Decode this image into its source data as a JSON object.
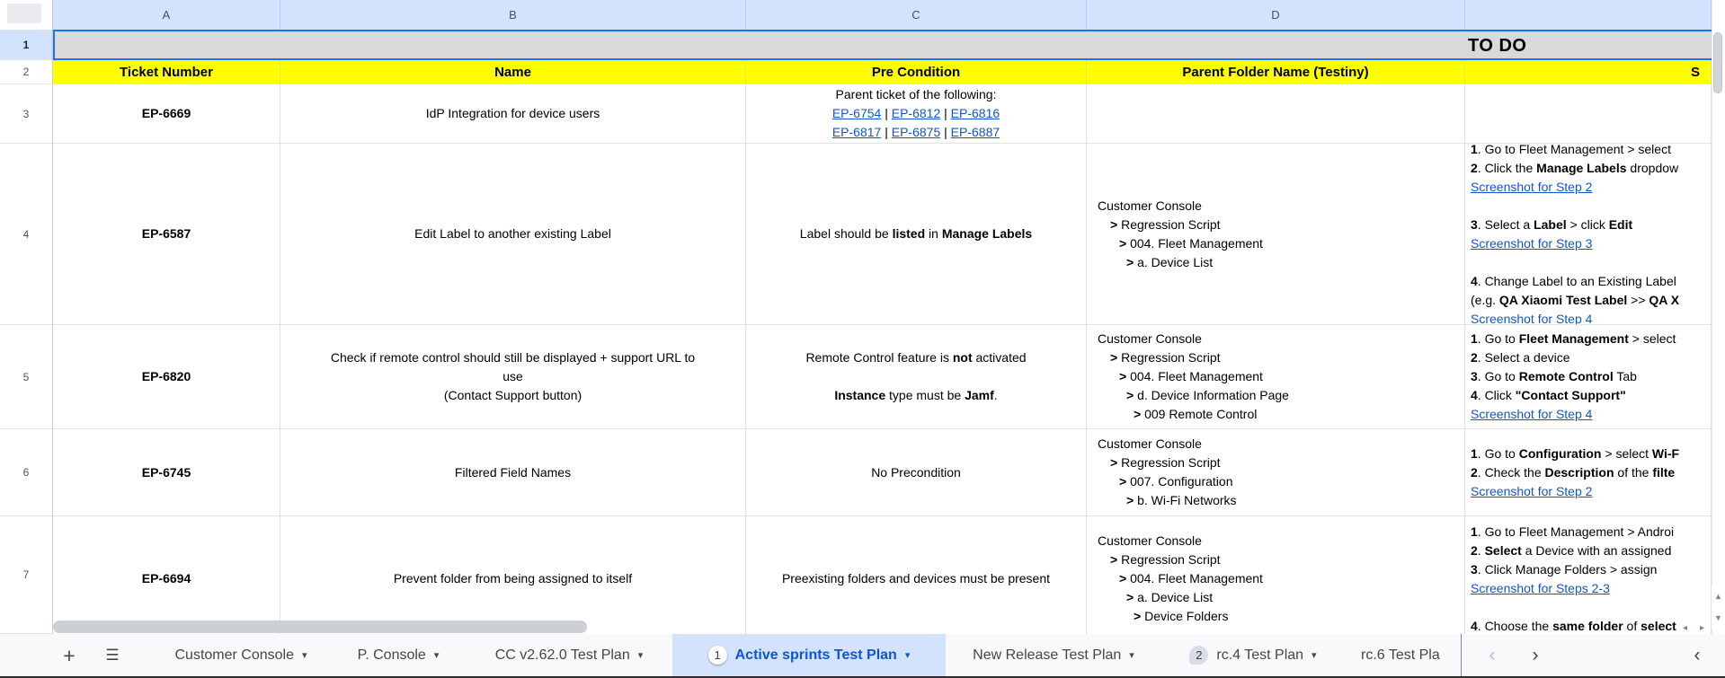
{
  "colors": {
    "header_highlight": "#d3e3fd",
    "banner_gray": "#d9d9d9",
    "header_yellow": "#ffff00",
    "selection_blue": "#1a73e8",
    "link_blue": "#1155cc",
    "active_tab_text": "#0b57d0",
    "active_tab_bg": "#d3e3fd"
  },
  "icons": {
    "scroll_up": "▲",
    "scroll_down": "▼",
    "scroll_left": "◂",
    "scroll_right": "▸",
    "tab_menu_arrow": "▾",
    "add_sheet": "+",
    "all_sheets": "☰"
  },
  "sheet": {
    "merged_banner": "TO DO",
    "column_letters": [
      "A",
      "B",
      "C",
      "D",
      ""
    ],
    "row_numbers": [
      "1",
      "2",
      "3",
      "4",
      "5",
      "6",
      "7"
    ],
    "headers": {
      "ticket": "Ticket Number",
      "name": "Name",
      "pre": "Pre Condition",
      "folder": "Parent Folder Name (Testiny)",
      "steps": "S"
    },
    "rows": [
      {
        "row": "3",
        "ticket": "EP-6669",
        "name": [
          {
            "s": [
              {
                "t": "IdP Integration for device users"
              }
            ]
          }
        ],
        "pre": [
          {
            "s": [
              {
                "t": "Parent ticket of the following:"
              }
            ]
          },
          {
            "s": [
              {
                "t": "EP-6754",
                "l": 1
              },
              {
                "t": " | "
              },
              {
                "t": "EP-6812",
                "l": 1
              },
              {
                "t": " | "
              },
              {
                "t": "EP-6816",
                "l": 1
              }
            ]
          },
          {
            "s": [
              {
                "t": "EP-6817",
                "l": 1
              },
              {
                "t": " | "
              },
              {
                "t": "EP-6875",
                "l": 1
              },
              {
                "t": " | "
              },
              {
                "t": "EP-6887",
                "l": 1
              }
            ]
          }
        ],
        "folder": [],
        "steps": []
      },
      {
        "row": "4",
        "ticket": "EP-6587",
        "name": [
          {
            "s": [
              {
                "t": "Edit Label to another existing Label"
              }
            ]
          }
        ],
        "pre": [
          {
            "s": [
              {
                "t": "Label should be "
              },
              {
                "t": "listed",
                "b": 1
              },
              {
                "t": " in "
              },
              {
                "t": "Manage Labels",
                "b": 1
              }
            ]
          }
        ],
        "folder": [
          {
            "ind": 0,
            "s": [
              {
                "t": "Customer Console"
              }
            ]
          },
          {
            "ind": 1,
            "s": [
              {
                "t": "> ",
                "b": 1
              },
              {
                "t": "Regression Script"
              }
            ]
          },
          {
            "ind": 2,
            "s": [
              {
                "t": "> ",
                "b": 1
              },
              {
                "t": "004. Fleet Management"
              }
            ]
          },
          {
            "ind": 3,
            "s": [
              {
                "t": "> ",
                "b": 1
              },
              {
                "t": "a. Device List"
              }
            ]
          }
        ],
        "steps": [
          {
            "s": [
              {
                "t": "1",
                "b": 1
              },
              {
                "t": ". Go to Fleet Management > select"
              }
            ]
          },
          {
            "s": [
              {
                "t": "2",
                "b": 1
              },
              {
                "t": ". Click the "
              },
              {
                "t": "Manage Labels",
                "b": 1
              },
              {
                "t": " dropdow"
              }
            ]
          },
          {
            "s": [
              {
                "t": "Screenshot for Step 2",
                "l": 1
              }
            ]
          },
          {
            "s": []
          },
          {
            "s": [
              {
                "t": "3",
                "b": 1
              },
              {
                "t": ". Select a "
              },
              {
                "t": "Label",
                "b": 1
              },
              {
                "t": " > click "
              },
              {
                "t": "Edit",
                "b": 1
              }
            ]
          },
          {
            "s": [
              {
                "t": "Screenshot for Step 3",
                "l": 1
              }
            ]
          },
          {
            "s": []
          },
          {
            "s": [
              {
                "t": "4",
                "b": 1
              },
              {
                "t": ". Change Label to an Existing Label"
              }
            ]
          },
          {
            "s": [
              {
                "t": "(e.g. "
              },
              {
                "t": "QA Xiaomi Test Label",
                "b": 1
              },
              {
                "t": " >> "
              },
              {
                "t": "QA X",
                "b": 1
              }
            ]
          },
          {
            "s": [
              {
                "t": "Screenshot for Step 4",
                "l": 1
              }
            ]
          }
        ]
      },
      {
        "row": "5",
        "ticket": "EP-6820",
        "name": [
          {
            "s": [
              {
                "t": "Check if remote control should still be displayed + support URL to"
              }
            ]
          },
          {
            "s": [
              {
                "t": "use"
              }
            ]
          },
          {
            "s": [
              {
                "t": "(Contact Support button)"
              }
            ]
          }
        ],
        "pre": [
          {
            "s": [
              {
                "t": "Remote Control feature is "
              },
              {
                "t": "not",
                "b": 1
              },
              {
                "t": " activated"
              }
            ]
          },
          {
            "s": []
          },
          {
            "s": [
              {
                "t": "Instance",
                "b": 1
              },
              {
                "t": " type must be "
              },
              {
                "t": "Jamf",
                "b": 1
              },
              {
                "t": "."
              }
            ]
          }
        ],
        "folder": [
          {
            "ind": 0,
            "s": [
              {
                "t": "Customer Console"
              }
            ]
          },
          {
            "ind": 1,
            "s": [
              {
                "t": "> ",
                "b": 1
              },
              {
                "t": "Regression Script"
              }
            ]
          },
          {
            "ind": 2,
            "s": [
              {
                "t": "> ",
                "b": 1
              },
              {
                "t": "004. Fleet Management"
              }
            ]
          },
          {
            "ind": 3,
            "s": [
              {
                "t": "> ",
                "b": 1
              },
              {
                "t": "d. Device Information Page"
              }
            ]
          },
          {
            "ind": 4,
            "s": [
              {
                "t": "> ",
                "b": 1
              },
              {
                "t": "009 Remote Control"
              }
            ]
          }
        ],
        "steps": [
          {
            "s": [
              {
                "t": "1",
                "b": 1
              },
              {
                "t": ". Go to "
              },
              {
                "t": "Fleet Management",
                "b": 1
              },
              {
                "t": " > select"
              }
            ]
          },
          {
            "s": [
              {
                "t": "2",
                "b": 1
              },
              {
                "t": ". Select a device"
              }
            ]
          },
          {
            "s": [
              {
                "t": "3",
                "b": 1
              },
              {
                "t": ". Go to "
              },
              {
                "t": "Remote Control",
                "b": 1
              },
              {
                "t": " Tab"
              }
            ]
          },
          {
            "s": [
              {
                "t": "4",
                "b": 1
              },
              {
                "t": ". Click "
              },
              {
                "t": "\"Contact Support\"",
                "b": 1
              }
            ]
          },
          {
            "s": [
              {
                "t": "Screenshot for Step 4",
                "l": 1
              }
            ]
          }
        ]
      },
      {
        "row": "6",
        "ticket": "EP-6745",
        "name": [
          {
            "s": [
              {
                "t": "Filtered Field Names"
              }
            ]
          }
        ],
        "pre": [
          {
            "s": [
              {
                "t": "No Precondition"
              }
            ]
          }
        ],
        "folder": [
          {
            "ind": 0,
            "s": [
              {
                "t": "Customer Console"
              }
            ]
          },
          {
            "ind": 1,
            "s": [
              {
                "t": "> ",
                "b": 1
              },
              {
                "t": "Regression Script"
              }
            ]
          },
          {
            "ind": 2,
            "s": [
              {
                "t": "> ",
                "b": 1
              },
              {
                "t": "007. Configuration"
              }
            ]
          },
          {
            "ind": 3,
            "s": [
              {
                "t": "> ",
                "b": 1
              },
              {
                "t": "b. Wi-Fi Networks"
              }
            ]
          }
        ],
        "steps": [
          {
            "s": [
              {
                "t": "1",
                "b": 1
              },
              {
                "t": ". Go to "
              },
              {
                "t": "Configuration",
                "b": 1
              },
              {
                "t": " > select "
              },
              {
                "t": "Wi-F",
                "b": 1
              }
            ]
          },
          {
            "s": [
              {
                "t": "2",
                "b": 1
              },
              {
                "t": ". Check the "
              },
              {
                "t": "Description",
                "b": 1
              },
              {
                "t": " of the "
              },
              {
                "t": "filte",
                "b": 1
              }
            ]
          },
          {
            "s": [
              {
                "t": "Screenshot for Step 2",
                "l": 1
              }
            ]
          }
        ]
      },
      {
        "row": "7",
        "ticket": "EP-6694",
        "name": [
          {
            "s": [
              {
                "t": "Prevent folder from being assigned to itself"
              }
            ]
          }
        ],
        "pre": [
          {
            "s": [
              {
                "t": "Preexisting folders and devices must be present"
              }
            ]
          }
        ],
        "folder": [
          {
            "ind": 0,
            "s": [
              {
                "t": "Customer Console"
              }
            ]
          },
          {
            "ind": 1,
            "s": [
              {
                "t": "> ",
                "b": 1
              },
              {
                "t": "Regression Script"
              }
            ]
          },
          {
            "ind": 2,
            "s": [
              {
                "t": "> ",
                "b": 1
              },
              {
                "t": "004. Fleet Management"
              }
            ]
          },
          {
            "ind": 3,
            "s": [
              {
                "t": "> ",
                "b": 1
              },
              {
                "t": "a. Device List"
              }
            ]
          },
          {
            "ind": 4,
            "s": [
              {
                "t": "> ",
                "b": 1
              },
              {
                "t": "Device Folders"
              }
            ]
          }
        ],
        "steps": [
          {
            "s": [
              {
                "t": "1",
                "b": 1
              },
              {
                "t": ". Go to Fleet Management > Androi"
              }
            ]
          },
          {
            "s": [
              {
                "t": "2",
                "b": 1
              },
              {
                "t": ". "
              },
              {
                "t": "Select",
                "b": 1
              },
              {
                "t": " a Device with an assigned"
              }
            ]
          },
          {
            "s": [
              {
                "t": "3",
                "b": 1
              },
              {
                "t": ". Click Manage Folders > assign"
              }
            ]
          },
          {
            "s": [
              {
                "t": "Screenshot for Steps 2-3",
                "l": 1
              }
            ]
          },
          {
            "s": []
          },
          {
            "s": [
              {
                "t": "4",
                "b": 1
              },
              {
                "t": ". Choose the "
              },
              {
                "t": "same folder",
                "b": 1
              },
              {
                "t": " of "
              },
              {
                "t": "select",
                "b": 1
              }
            ]
          }
        ]
      }
    ]
  },
  "tabbar": {
    "tabs": [
      {
        "label": "Customer Console",
        "badge": null,
        "active": false,
        "menu": true
      },
      {
        "label": "P. Console",
        "badge": null,
        "active": false,
        "menu": true
      },
      {
        "label": "CC v2.62.0 Test Plan",
        "badge": null,
        "active": false,
        "menu": true
      },
      {
        "label": "Active sprints Test Plan",
        "badge": "1",
        "active": true,
        "menu": true
      },
      {
        "label": "New Release Test Plan",
        "badge": null,
        "active": false,
        "menu": true
      },
      {
        "label": "rc.4 Test Plan",
        "badge": "2",
        "active": false,
        "menu": true
      },
      {
        "label": "rc.6 Test Pla",
        "badge": null,
        "active": false,
        "menu": false,
        "truncated": true
      }
    ],
    "prev_tabs_arrow": "‹",
    "next_tabs_arrow": "›",
    "right_scroll_arrow": "‹"
  }
}
